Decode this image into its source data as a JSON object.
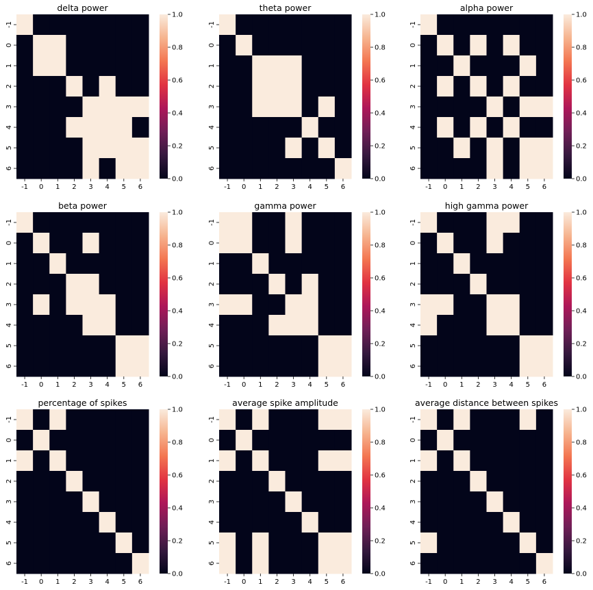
{
  "colors": {
    "low": "#03051a",
    "high": "#faebdd",
    "colormap": [
      "#03051a",
      "#36193e",
      "#701f57",
      "#ad1759",
      "#e13342",
      "#f37651",
      "#f6b48f",
      "#faebdd"
    ]
  },
  "chart_data": [
    {
      "type": "heatmap",
      "title": "delta power",
      "xticklabels": [
        "-1",
        "0",
        "1",
        "2",
        "3",
        "4",
        "5",
        "6"
      ],
      "yticklabels": [
        "-1",
        "0",
        "1",
        "2",
        "3",
        "4",
        "5",
        "6"
      ],
      "colorbar": {
        "range": [
          0,
          1
        ],
        "ticks": [
          "0.0",
          "0.2",
          "0.4",
          "0.6",
          "0.8",
          "1.0"
        ]
      },
      "matrix": [
        [
          1,
          0,
          0,
          0,
          0,
          0,
          0,
          0
        ],
        [
          0,
          1,
          1,
          0,
          0,
          0,
          0,
          0
        ],
        [
          0,
          1,
          1,
          0,
          0,
          0,
          0,
          0
        ],
        [
          0,
          0,
          0,
          1,
          0,
          1,
          0,
          0
        ],
        [
          0,
          0,
          0,
          0,
          1,
          1,
          1,
          1
        ],
        [
          0,
          0,
          0,
          1,
          1,
          1,
          1,
          0
        ],
        [
          0,
          0,
          0,
          0,
          1,
          1,
          1,
          1
        ],
        [
          0,
          0,
          0,
          0,
          1,
          0,
          1,
          1
        ]
      ]
    },
    {
      "type": "heatmap",
      "title": "theta power",
      "xticklabels": [
        "-1",
        "0",
        "1",
        "2",
        "3",
        "4",
        "5",
        "6"
      ],
      "yticklabels": [
        "-1",
        "0",
        "1",
        "2",
        "3",
        "4",
        "5",
        "6"
      ],
      "colorbar": {
        "range": [
          0,
          1
        ],
        "ticks": [
          "0.0",
          "0.2",
          "0.4",
          "0.6",
          "0.8",
          "1.0"
        ]
      },
      "matrix": [
        [
          1,
          0,
          0,
          0,
          0,
          0,
          0,
          0
        ],
        [
          0,
          1,
          0,
          0,
          0,
          0,
          0,
          0
        ],
        [
          0,
          0,
          1,
          1,
          1,
          0,
          0,
          0
        ],
        [
          0,
          0,
          1,
          1,
          1,
          0,
          0,
          0
        ],
        [
          0,
          0,
          1,
          1,
          1,
          0,
          1,
          0
        ],
        [
          0,
          0,
          0,
          0,
          0,
          1,
          0,
          0
        ],
        [
          0,
          0,
          0,
          0,
          1,
          0,
          1,
          0
        ],
        [
          0,
          0,
          0,
          0,
          0,
          0,
          0,
          1
        ]
      ]
    },
    {
      "type": "heatmap",
      "title": "alpha power",
      "xticklabels": [
        "-1",
        "0",
        "1",
        "2",
        "3",
        "4",
        "5",
        "6"
      ],
      "yticklabels": [
        "-1",
        "0",
        "1",
        "2",
        "3",
        "4",
        "5",
        "6"
      ],
      "colorbar": {
        "range": [
          0,
          1
        ],
        "ticks": [
          "0.0",
          "0.2",
          "0.4",
          "0.6",
          "0.8",
          "1.0"
        ]
      },
      "matrix": [
        [
          1,
          0,
          0,
          0,
          0,
          0,
          0,
          0
        ],
        [
          0,
          1,
          0,
          1,
          0,
          1,
          0,
          0
        ],
        [
          0,
          0,
          1,
          0,
          0,
          0,
          1,
          0
        ],
        [
          0,
          1,
          0,
          1,
          0,
          1,
          0,
          0
        ],
        [
          0,
          0,
          0,
          0,
          1,
          0,
          1,
          1
        ],
        [
          0,
          1,
          0,
          1,
          0,
          1,
          0,
          0
        ],
        [
          0,
          0,
          1,
          0,
          1,
          0,
          1,
          1
        ],
        [
          0,
          0,
          0,
          0,
          1,
          0,
          1,
          1
        ]
      ]
    },
    {
      "type": "heatmap",
      "title": "beta power",
      "xticklabels": [
        "-1",
        "0",
        "1",
        "2",
        "3",
        "4",
        "5",
        "6"
      ],
      "yticklabels": [
        "-1",
        "0",
        "1",
        "2",
        "3",
        "4",
        "5",
        "6"
      ],
      "colorbar": {
        "range": [
          0,
          1
        ],
        "ticks": [
          "0.0",
          "0.2",
          "0.4",
          "0.6",
          "0.8",
          "1.0"
        ]
      },
      "matrix": [
        [
          1,
          0,
          0,
          0,
          0,
          0,
          0,
          0
        ],
        [
          0,
          1,
          0,
          0,
          1,
          0,
          0,
          0
        ],
        [
          0,
          0,
          1,
          0,
          0,
          0,
          0,
          0
        ],
        [
          0,
          0,
          0,
          1,
          1,
          0,
          0,
          0
        ],
        [
          0,
          1,
          0,
          1,
          1,
          1,
          0,
          0
        ],
        [
          0,
          0,
          0,
          0,
          1,
          1,
          0,
          0
        ],
        [
          0,
          0,
          0,
          0,
          0,
          0,
          1,
          1
        ],
        [
          0,
          0,
          0,
          0,
          0,
          0,
          1,
          1
        ]
      ]
    },
    {
      "type": "heatmap",
      "title": "gamma power",
      "xticklabels": [
        "-1",
        "0",
        "1",
        "2",
        "3",
        "4",
        "5",
        "6"
      ],
      "yticklabels": [
        "-1",
        "0",
        "1",
        "2",
        "3",
        "4",
        "5",
        "6"
      ],
      "colorbar": {
        "range": [
          0,
          1
        ],
        "ticks": [
          "0.0",
          "0.2",
          "0.4",
          "0.6",
          "0.8",
          "1.0"
        ]
      },
      "matrix": [
        [
          1,
          1,
          0,
          0,
          1,
          0,
          0,
          0
        ],
        [
          1,
          1,
          0,
          0,
          1,
          0,
          0,
          0
        ],
        [
          0,
          0,
          1,
          0,
          0,
          0,
          0,
          0
        ],
        [
          0,
          0,
          0,
          1,
          0,
          1,
          0,
          0
        ],
        [
          1,
          1,
          0,
          0,
          1,
          1,
          0,
          0
        ],
        [
          0,
          0,
          0,
          1,
          1,
          1,
          0,
          0
        ],
        [
          0,
          0,
          0,
          0,
          0,
          0,
          1,
          1
        ],
        [
          0,
          0,
          0,
          0,
          0,
          0,
          1,
          1
        ]
      ]
    },
    {
      "type": "heatmap",
      "title": "high gamma power",
      "xticklabels": [
        "-1",
        "0",
        "1",
        "2",
        "3",
        "4",
        "5",
        "6"
      ],
      "yticklabels": [
        "-1",
        "0",
        "1",
        "2",
        "3",
        "4",
        "5",
        "6"
      ],
      "colorbar": {
        "range": [
          0,
          1
        ],
        "ticks": [
          "0.0",
          "0.2",
          "0.4",
          "0.6",
          "0.8",
          "1.0"
        ]
      },
      "matrix": [
        [
          1,
          0,
          0,
          0,
          1,
          1,
          0,
          0
        ],
        [
          0,
          1,
          0,
          0,
          1,
          0,
          0,
          0
        ],
        [
          0,
          0,
          1,
          0,
          0,
          0,
          0,
          0
        ],
        [
          0,
          0,
          0,
          1,
          0,
          0,
          0,
          0
        ],
        [
          1,
          1,
          0,
          0,
          1,
          1,
          0,
          0
        ],
        [
          1,
          0,
          0,
          0,
          1,
          1,
          0,
          0
        ],
        [
          0,
          0,
          0,
          0,
          0,
          0,
          1,
          1
        ],
        [
          0,
          0,
          0,
          0,
          0,
          0,
          1,
          1
        ]
      ]
    },
    {
      "type": "heatmap",
      "title": "percentage of spikes",
      "xticklabels": [
        "-1",
        "0",
        "1",
        "2",
        "3",
        "4",
        "5",
        "6"
      ],
      "yticklabels": [
        "-1",
        "0",
        "1",
        "2",
        "3",
        "4",
        "5",
        "6"
      ],
      "colorbar": {
        "range": [
          0,
          1
        ],
        "ticks": [
          "0.0",
          "0.2",
          "0.4",
          "0.6",
          "0.8",
          "1.0"
        ]
      },
      "matrix": [
        [
          1,
          0,
          1,
          0,
          0,
          0,
          0,
          0
        ],
        [
          0,
          1,
          0,
          0,
          0,
          0,
          0,
          0
        ],
        [
          1,
          0,
          1,
          0,
          0,
          0,
          0,
          0
        ],
        [
          0,
          0,
          0,
          1,
          0,
          0,
          0,
          0
        ],
        [
          0,
          0,
          0,
          0,
          1,
          0,
          0,
          0
        ],
        [
          0,
          0,
          0,
          0,
          0,
          1,
          0,
          0
        ],
        [
          0,
          0,
          0,
          0,
          0,
          0,
          1,
          0
        ],
        [
          0,
          0,
          0,
          0,
          0,
          0,
          0,
          1
        ]
      ]
    },
    {
      "type": "heatmap",
      "title": "average spike amplitude",
      "xticklabels": [
        "-1",
        "0",
        "1",
        "2",
        "3",
        "4",
        "5",
        "6"
      ],
      "yticklabels": [
        "-1",
        "0",
        "1",
        "2",
        "3",
        "4",
        "5",
        "6"
      ],
      "colorbar": {
        "range": [
          0,
          1
        ],
        "ticks": [
          "0.0",
          "0.2",
          "0.4",
          "0.6",
          "0.8",
          "1.0"
        ]
      },
      "matrix": [
        [
          1,
          0,
          1,
          0,
          0,
          0,
          1,
          1
        ],
        [
          0,
          1,
          0,
          0,
          0,
          0,
          0,
          0
        ],
        [
          1,
          0,
          1,
          0,
          0,
          0,
          1,
          1
        ],
        [
          0,
          0,
          0,
          1,
          0,
          0,
          0,
          0
        ],
        [
          0,
          0,
          0,
          0,
          1,
          0,
          0,
          0
        ],
        [
          0,
          0,
          0,
          0,
          0,
          1,
          0,
          0
        ],
        [
          1,
          0,
          1,
          0,
          0,
          0,
          1,
          1
        ],
        [
          1,
          0,
          1,
          0,
          0,
          0,
          1,
          1
        ]
      ]
    },
    {
      "type": "heatmap",
      "title": "average distance between spikes",
      "xticklabels": [
        "-1",
        "0",
        "1",
        "2",
        "3",
        "4",
        "5",
        "6"
      ],
      "yticklabels": [
        "-1",
        "0",
        "1",
        "2",
        "3",
        "4",
        "5",
        "6"
      ],
      "colorbar": {
        "range": [
          0,
          1
        ],
        "ticks": [
          "0.0",
          "0.2",
          "0.4",
          "0.6",
          "0.8",
          "1.0"
        ]
      },
      "matrix": [
        [
          1,
          0,
          1,
          0,
          0,
          0,
          1,
          0
        ],
        [
          0,
          1,
          0,
          0,
          0,
          0,
          0,
          0
        ],
        [
          1,
          0,
          1,
          0,
          0,
          0,
          0,
          0
        ],
        [
          0,
          0,
          0,
          1,
          0,
          0,
          0,
          0
        ],
        [
          0,
          0,
          0,
          0,
          1,
          0,
          0,
          0
        ],
        [
          0,
          0,
          0,
          0,
          0,
          1,
          0,
          0
        ],
        [
          1,
          0,
          0,
          0,
          0,
          0,
          1,
          0
        ],
        [
          0,
          0,
          0,
          0,
          0,
          0,
          0,
          1
        ]
      ]
    }
  ]
}
